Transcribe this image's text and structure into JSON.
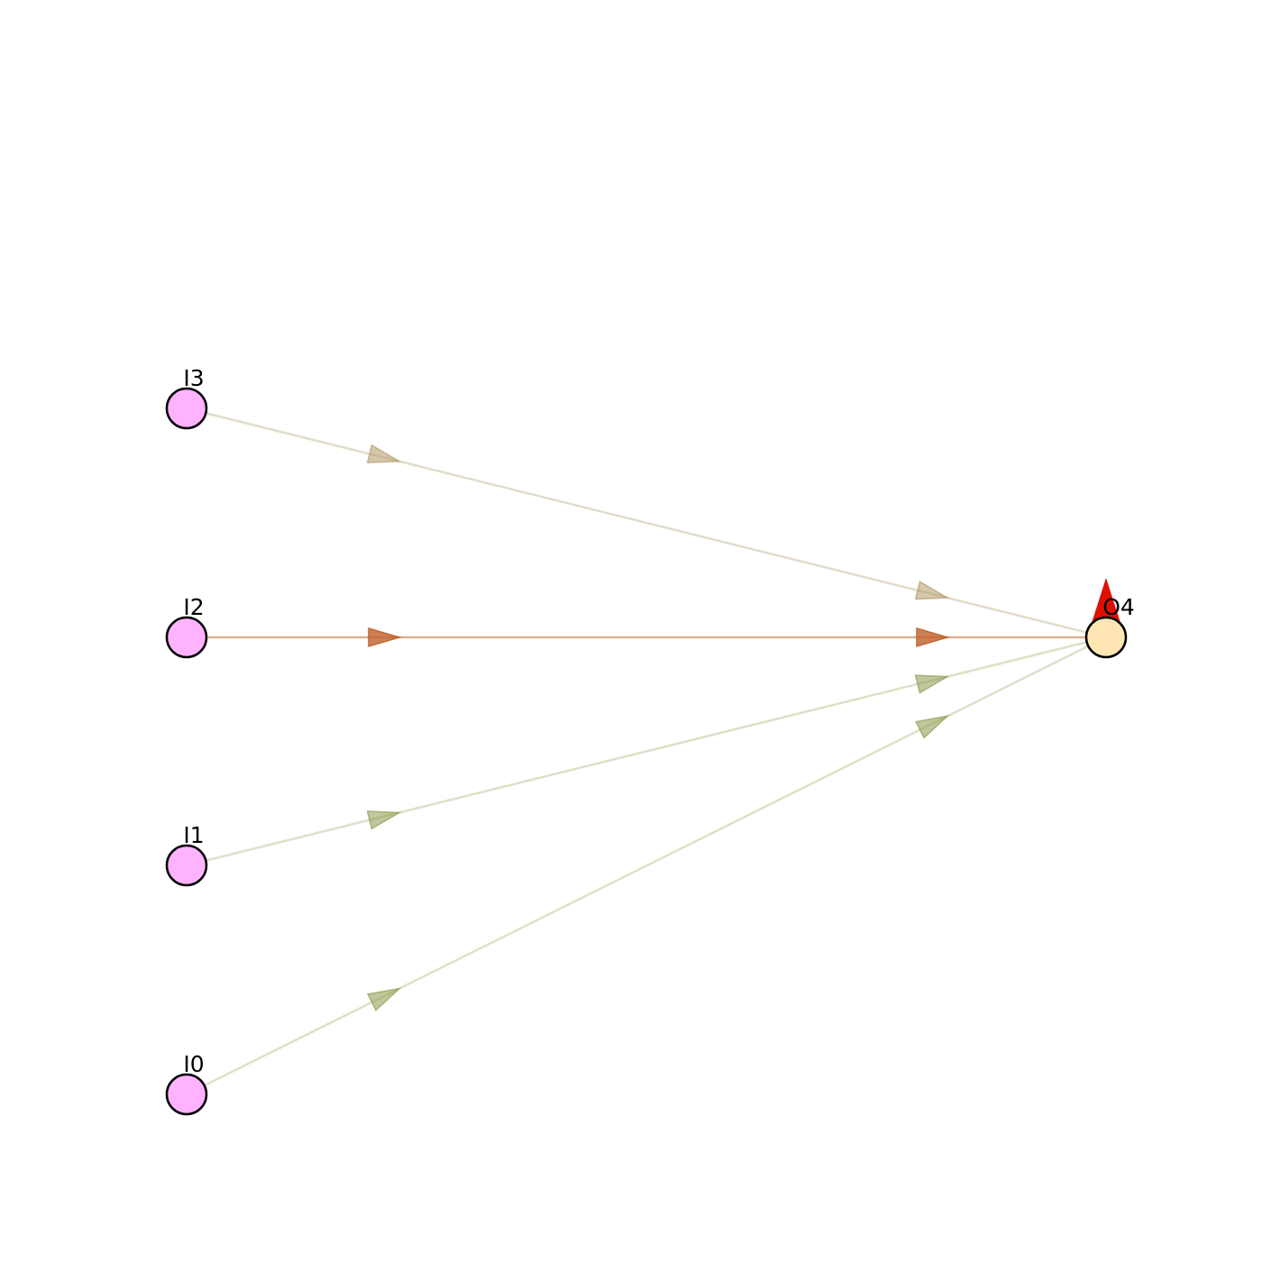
{
  "nodes": [
    {
      "id": "I0",
      "label": "I0",
      "kind": "input",
      "fill": "#ffb3ff"
    },
    {
      "id": "I1",
      "label": "I1",
      "kind": "input",
      "fill": "#ffb3ff"
    },
    {
      "id": "I2",
      "label": "I2",
      "kind": "input",
      "fill": "#ffb3ff"
    },
    {
      "id": "I3",
      "label": "I3",
      "kind": "input",
      "fill": "#ffb3ff"
    },
    {
      "id": "O4",
      "label": "O4",
      "kind": "output",
      "fill": "#ffe6b3"
    }
  ],
  "edges": [
    {
      "from": "I3",
      "to": "O4",
      "color": "#b09a66",
      "opacity": 0.35,
      "arrow_opacity": 0.55
    },
    {
      "from": "I2",
      "to": "O4",
      "color": "#c0602a",
      "opacity": 0.5,
      "arrow_opacity": 0.8
    },
    {
      "from": "I1",
      "to": "O4",
      "color": "#8a9a4a",
      "opacity": 0.3,
      "arrow_opacity": 0.55
    },
    {
      "from": "I0",
      "to": "O4",
      "color": "#8a9a4a",
      "opacity": 0.3,
      "arrow_opacity": 0.55
    }
  ],
  "output_marker_color": "#dd1100"
}
